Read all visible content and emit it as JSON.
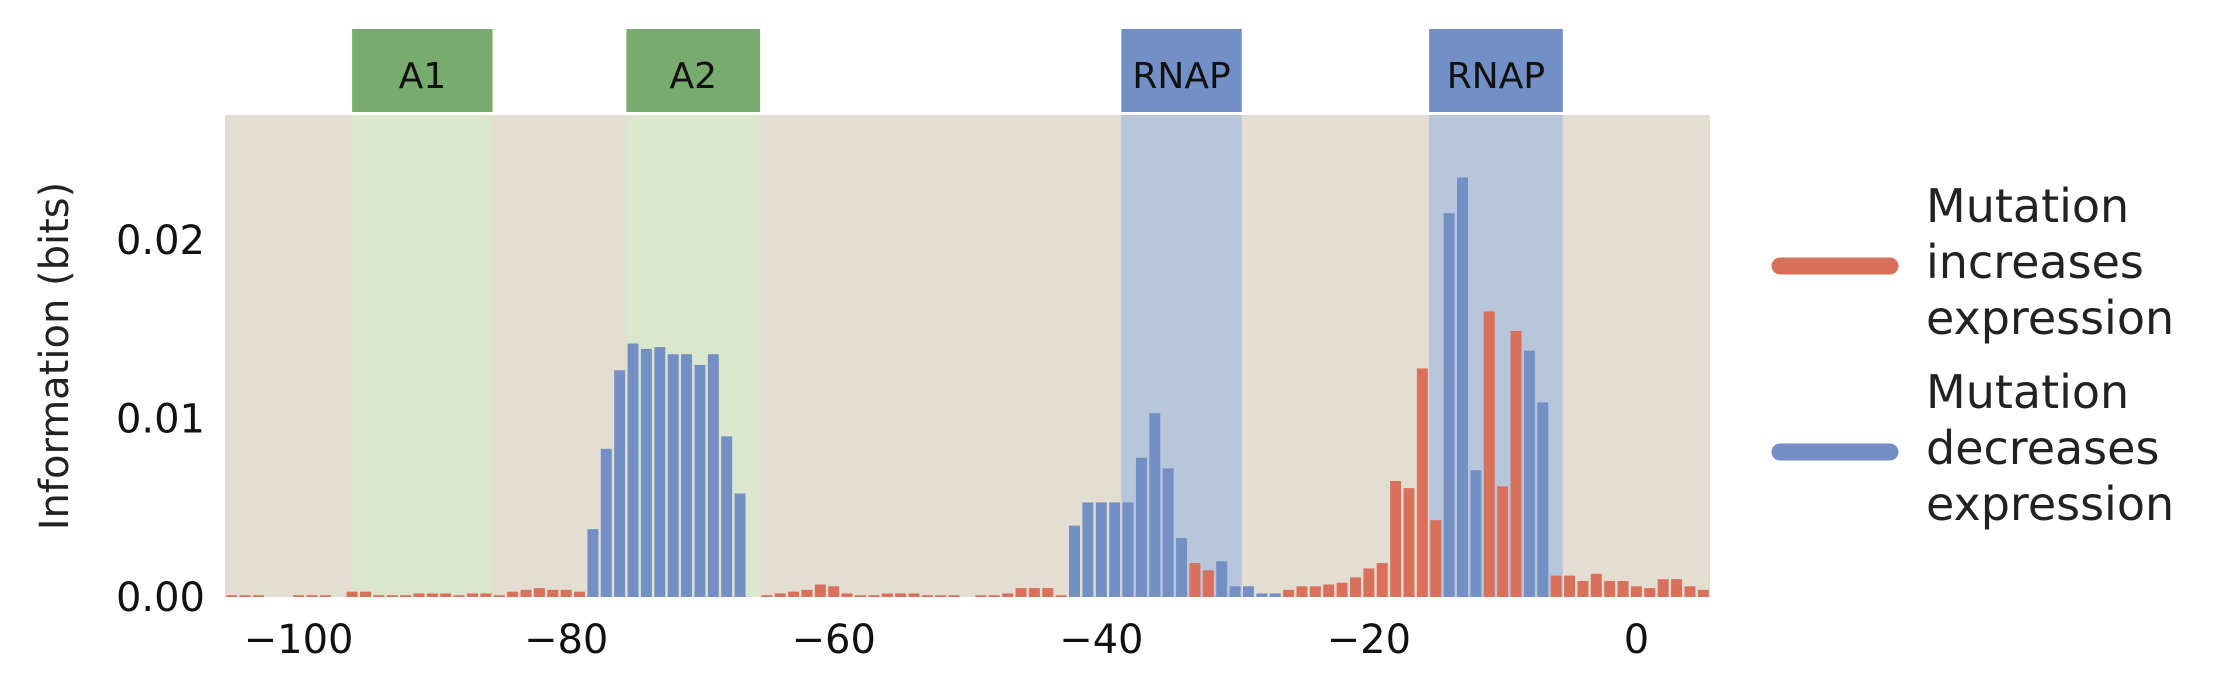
{
  "chart_data": {
    "type": "bar",
    "ylabel": "Information (bits)",
    "xlabel": "",
    "xlim": [
      -105.5,
      5.5
    ],
    "ylim": [
      0,
      0.027
    ],
    "grid": false,
    "legend_placement": "right",
    "x_ticks": [
      -100,
      -80,
      -60,
      -40,
      -20,
      0
    ],
    "x_tick_labels": [
      "−100",
      "−80",
      "−60",
      "−40",
      "−20",
      "0"
    ],
    "y_ticks": [
      0,
      0.01,
      0.02
    ],
    "y_tick_labels": [
      "0.00",
      "0.01",
      "0.02"
    ],
    "regions": [
      {
        "label": "A1",
        "start": -96,
        "end": -85.5,
        "color": "#7aab6e",
        "fill": "#dce6cc"
      },
      {
        "label": "A2",
        "start": -75.5,
        "end": -65.5,
        "color": "#7aab6e",
        "fill": "#dce6cc"
      },
      {
        "label": "RNAP",
        "start": -38.5,
        "end": -29.5,
        "color": "#7390c6",
        "fill": "#b8c6dc"
      },
      {
        "label": "RNAP",
        "start": -15.5,
        "end": -5.5,
        "color": "#7390c6",
        "fill": "#b8c6dc"
      }
    ],
    "legend": [
      {
        "label_lines": [
          "Mutation",
          "increases",
          "expression"
        ],
        "color": "#d9705a"
      },
      {
        "label_lines": [
          "Mutation",
          "decreases",
          "expression"
        ],
        "color": "#738fc4"
      }
    ],
    "colors": {
      "increase": "#d9705a",
      "decrease": "#738fc4",
      "background": "#e3ddd2"
    },
    "series": [
      {
        "x": [
          -105,
          -104,
          -103,
          -102,
          -101,
          -100,
          -99,
          -98,
          -97,
          -96,
          -95,
          -94,
          -93,
          -92,
          -91,
          -90,
          -89,
          -88,
          -87,
          -86,
          -85,
          -84,
          -83,
          -82,
          -81,
          -80,
          -79,
          -78,
          -77,
          -76,
          -75,
          -74,
          -73,
          -72,
          -71,
          -70,
          -69,
          -68,
          -67,
          -66,
          -65,
          -64,
          -63,
          -62,
          -61,
          -60,
          -59,
          -58,
          -57,
          -56,
          -55,
          -54,
          -53,
          -52,
          -51,
          -50,
          -49,
          -48,
          -47,
          -46,
          -45,
          -44,
          -43,
          -42,
          -41,
          -40,
          -39,
          -38,
          -37,
          -36,
          -35,
          -34,
          -33,
          -32,
          -31,
          -30,
          -29,
          -28,
          -27,
          -26,
          -25,
          -24,
          -23,
          -22,
          -21,
          -20,
          -19,
          -18,
          -17,
          -16,
          -15,
          -14,
          -13,
          -12,
          -11,
          -10,
          -9,
          -8,
          -7,
          -6,
          -5,
          -4,
          -3,
          -2,
          -1,
          0,
          1,
          2,
          3,
          4,
          5
        ],
        "values": [
          0.0001,
          0.0001,
          0.0001,
          0,
          0,
          0.0001,
          0.0001,
          0.0001,
          0,
          0.0003,
          0.0003,
          0.0001,
          0.0001,
          0.0001,
          0.0002,
          0.0002,
          0.0002,
          0.0001,
          0.0002,
          0.0002,
          0.0001,
          0.0003,
          0.0004,
          0.0005,
          0.0004,
          0.0004,
          0.0003,
          0.0038,
          0.0083,
          0.0127,
          0.0142,
          0.0139,
          0.014,
          0.0136,
          0.0136,
          0.013,
          0.0136,
          0.009,
          0.0058,
          0,
          0.0001,
          0.0002,
          0.0003,
          0.0004,
          0.0007,
          0.0006,
          0.0002,
          0.0001,
          0.0001,
          0.0002,
          0.0002,
          0.0002,
          0.0001,
          0.0001,
          0.0001,
          0,
          0.0001,
          0.0001,
          0.0002,
          0.0005,
          0.0005,
          0.0005,
          0.0001,
          0.004,
          0.0053,
          0.0053,
          0.0053,
          0.0053,
          0.0078,
          0.0103,
          0.0072,
          0.0033,
          0.0019,
          0.0015,
          0.002,
          0.0006,
          0.0006,
          0.0002,
          0.0002,
          0.0004,
          0.0006,
          0.0006,
          0.0007,
          0.0008,
          0.0011,
          0.0016,
          0.0019,
          0.0065,
          0.0061,
          0.0128,
          0.0043,
          0.0215,
          0.0235,
          0.0071,
          0.016,
          0.0062,
          0.0149,
          0.0138,
          0.0109,
          0.0012,
          0.0012,
          0.0009,
          0.0013,
          0.0009,
          0.0009,
          0.0006,
          0.0005,
          0.001,
          0.001,
          0.0006,
          0.0004
        ],
        "direction": [
          "i",
          "i",
          "i",
          "i",
          "i",
          "i",
          "i",
          "i",
          "i",
          "i",
          "i",
          "i",
          "i",
          "i",
          "i",
          "i",
          "i",
          "i",
          "i",
          "i",
          "i",
          "i",
          "i",
          "i",
          "i",
          "i",
          "i",
          "d",
          "d",
          "d",
          "d",
          "d",
          "d",
          "d",
          "d",
          "d",
          "d",
          "d",
          "d",
          "i",
          "i",
          "i",
          "i",
          "i",
          "i",
          "i",
          "i",
          "i",
          "i",
          "i",
          "i",
          "i",
          "i",
          "i",
          "i",
          "i",
          "i",
          "i",
          "i",
          "i",
          "i",
          "i",
          "i",
          "d",
          "d",
          "d",
          "d",
          "d",
          "d",
          "d",
          "d",
          "d",
          "i",
          "i",
          "d",
          "d",
          "d",
          "d",
          "d",
          "i",
          "i",
          "i",
          "i",
          "i",
          "i",
          "i",
          "i",
          "i",
          "i",
          "i",
          "i",
          "d",
          "d",
          "d",
          "i",
          "i",
          "i",
          "d",
          "d",
          "i",
          "i",
          "i",
          "i",
          "i",
          "i",
          "i",
          "i",
          "i",
          "i",
          "i",
          "i"
        ]
      }
    ]
  }
}
